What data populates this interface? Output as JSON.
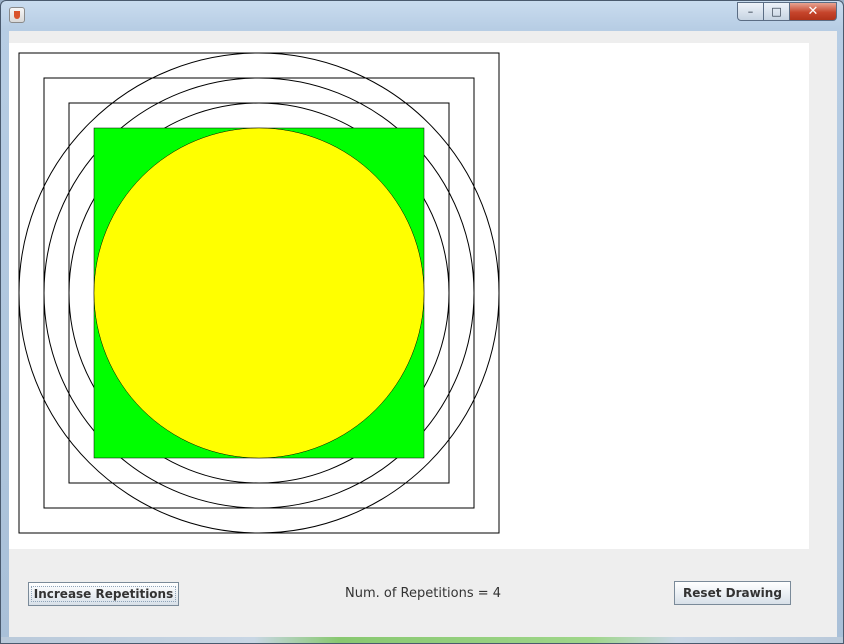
{
  "window": {
    "title": "",
    "controls": {
      "minimize": "–",
      "maximize": "□",
      "close": "✕"
    }
  },
  "drawing": {
    "repetitions": 4,
    "square_fill": "#00ff00",
    "circle_fill": "#ffff00",
    "outline_color": "#000000"
  },
  "controls": {
    "increase_label": "Increase Repetitions",
    "reps_text": "Num. of Repetitions = 4",
    "reset_label": "Reset Drawing"
  },
  "colors": {
    "panel_background": "#eeeeee",
    "canvas_background": "#ffffff"
  }
}
